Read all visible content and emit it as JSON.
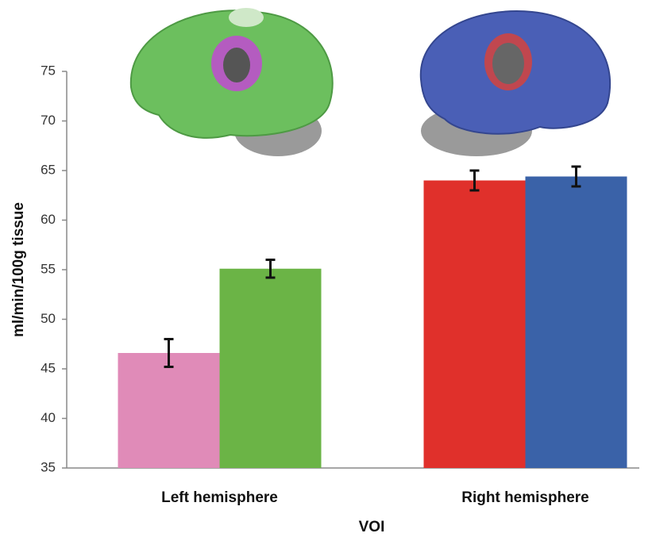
{
  "chart_data": {
    "type": "bar",
    "y_label": "ml/min/100g tissue",
    "x_label": "VOI",
    "categories": [
      "Left hemisphere",
      "Right hemisphere"
    ],
    "series": [
      {
        "colors": [
          "#e08bb8",
          "#e0302b"
        ],
        "values": [
          46.6,
          64.0
        ],
        "errors": [
          1.4,
          1.0
        ]
      },
      {
        "colors": [
          "#6bb446",
          "#3a62a8"
        ],
        "values": [
          55.1,
          64.4
        ],
        "errors": [
          0.9,
          1.0
        ]
      }
    ],
    "ylim": [
      35,
      75
    ],
    "yticks": [
      35,
      40,
      45,
      50,
      55,
      60,
      65,
      70,
      75
    ],
    "grid": false
  }
}
